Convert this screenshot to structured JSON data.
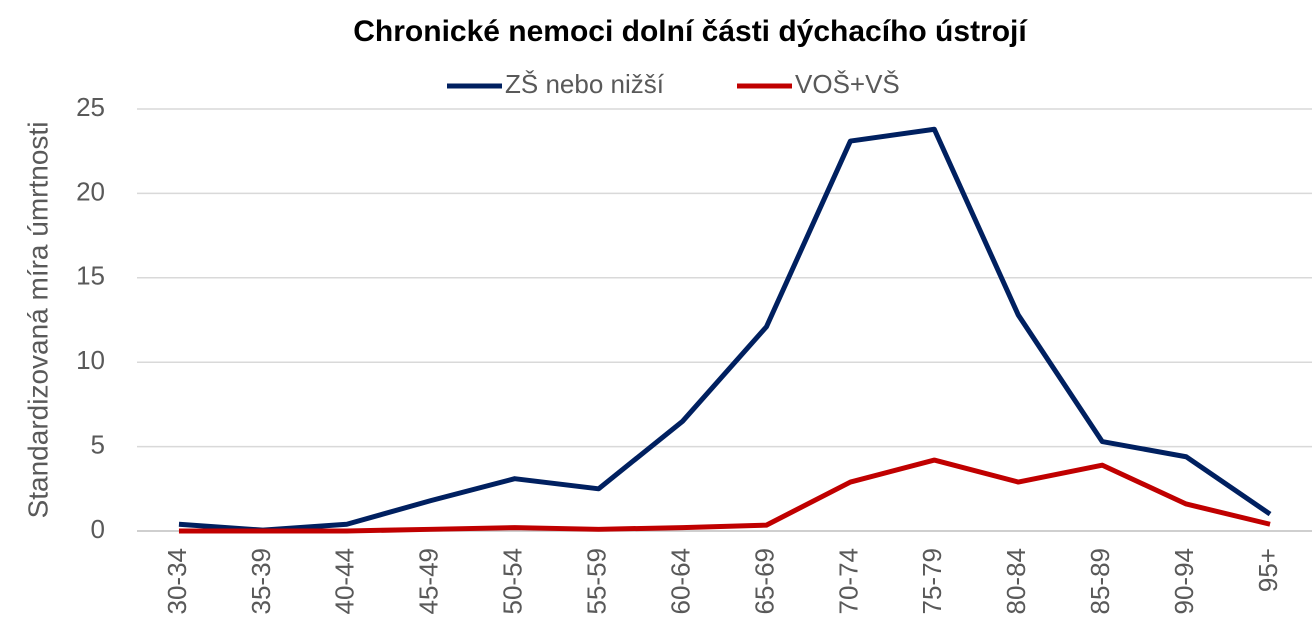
{
  "chart_data": {
    "type": "line",
    "title": "Chronické nemoci dolní části dýchacího ústrojí",
    "y_label": "Standardizovaná míra úmrtnosti",
    "categories": [
      "30-34",
      "35-39",
      "40-44",
      "45-49",
      "50-54",
      "55-59",
      "60-64",
      "65-69",
      "70-74",
      "75-79",
      "80-84",
      "85-89",
      "90-94",
      "95+"
    ],
    "series": [
      {
        "name": "ZŠ nebo nižší",
        "color": "#002060",
        "values": [
          0.4,
          0.05,
          0.4,
          1.8,
          3.1,
          2.5,
          6.5,
          12.1,
          23.1,
          23.8,
          12.8,
          5.3,
          4.4,
          1.0
        ]
      },
      {
        "name": "VOŠ+VŠ",
        "color": "#c00000",
        "values": [
          0.0,
          0.0,
          0.0,
          0.1,
          0.2,
          0.1,
          0.2,
          0.35,
          2.9,
          4.2,
          2.9,
          3.9,
          1.6,
          0.4
        ]
      }
    ],
    "ylim": [
      0,
      25
    ],
    "yticks": [
      0,
      5,
      10,
      15,
      20,
      25
    ],
    "grid": true,
    "legend": "top"
  }
}
